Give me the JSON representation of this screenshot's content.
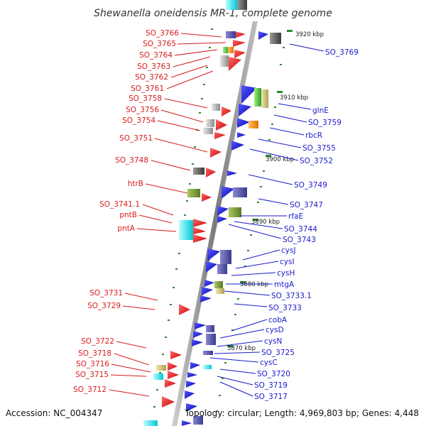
{
  "header": {
    "title": "Shewanella oneidensis MR-1, complete genome"
  },
  "footer": {
    "accession": "Accession: NC_004347",
    "topology": "Topology: circular; Length: 4,969,803 bp; Genes: 4,448"
  },
  "colors": {
    "forward_strand": "#e31010",
    "reverse_strand": "#1414e0",
    "left_label": "#d81b1b",
    "right_label": "#1a1acc",
    "kbp_tick": "#2a8a2a",
    "axis": "#8c8c8c"
  },
  "kbp_marks": [
    "3920 kbp",
    "3910 kbp",
    "3900 kbp",
    "3890 kbp",
    "3880 kbp",
    "3870 kbp"
  ],
  "left_genes": [
    "SO_3766",
    "SO_3765",
    "SO_3764",
    "SO_3763",
    "SO_3762",
    "SO_3761",
    "SO_3758",
    "SO_3756",
    "SO_3754",
    "SO_3751",
    "SO_3748",
    "htrB",
    "SO_3741.1",
    "pntB",
    "pntA",
    "SO_3731",
    "SO_3729",
    "SO_3722",
    "SO_3718",
    "SO_3716",
    "SO_3715",
    "SO_3712"
  ],
  "right_genes": [
    "SO_3769",
    "glnE",
    "SO_3759",
    "rbcR",
    "SO_3755",
    "SO_3752",
    "SO_3749",
    "SO_3747",
    "rfaE",
    "SO_3744",
    "SO_3743",
    "cysJ",
    "cysI",
    "cysH",
    "mtgA",
    "SO_3733.1",
    "SO_3733",
    "cobA",
    "cysD",
    "cysN",
    "SO_3725",
    "cysC",
    "SO_3720",
    "SO_3719",
    "SO_3717"
  ]
}
